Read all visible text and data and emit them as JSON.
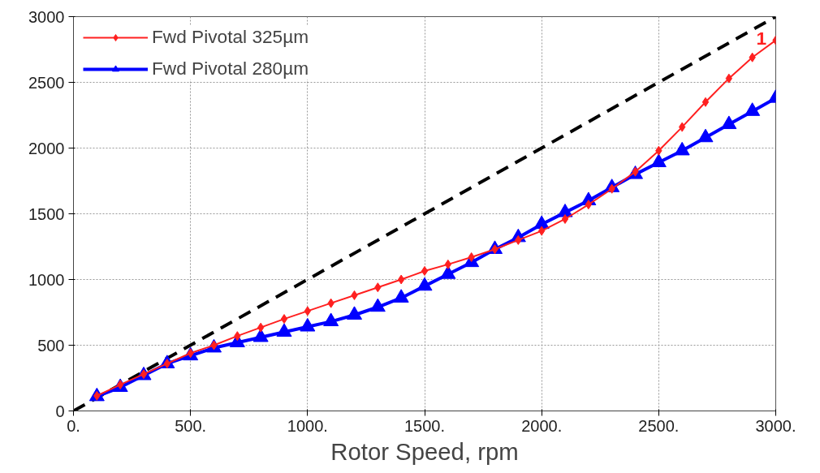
{
  "chart_data": {
    "type": "line",
    "xlabel": "Rotor Speed, rpm",
    "x": [
      100,
      200,
      300,
      400,
      500,
      600,
      700,
      800,
      900,
      1000,
      1100,
      1200,
      1300,
      1400,
      1500,
      1600,
      1700,
      1800,
      1900,
      2000,
      2100,
      2200,
      2300,
      2400,
      2500,
      2600,
      2700,
      2800,
      2900,
      3000
    ],
    "series": [
      {
        "name": "Fwd Pivotal 325µm",
        "color": "#ff2020",
        "marker": "diamond",
        "values": [
          115,
          200,
          280,
          360,
          440,
          500,
          570,
          635,
          700,
          760,
          820,
          880,
          940,
          1000,
          1065,
          1115,
          1170,
          1230,
          1300,
          1370,
          1460,
          1570,
          1690,
          1820,
          1980,
          2160,
          2350,
          2530,
          2690,
          2820
        ]
      },
      {
        "name": "Fwd Pivotal 280µm",
        "color": "#0000ff",
        "marker": "triangle",
        "values": [
          110,
          180,
          270,
          360,
          420,
          480,
          520,
          560,
          600,
          640,
          680,
          730,
          790,
          860,
          950,
          1040,
          1130,
          1230,
          1320,
          1420,
          1510,
          1600,
          1700,
          1800,
          1890,
          1980,
          2080,
          2180,
          2280,
          2380
        ]
      },
      {
        "type": "line",
        "color": "#000000",
        "marker": "none",
        "line_style": "dashed",
        "x": [
          0,
          3000
        ],
        "values": [
          0,
          3000
        ]
      }
    ],
    "xlim": [
      0,
      3000
    ],
    "ylim": [
      0,
      3000
    ],
    "xticks": [
      {
        "value": 0,
        "label": "0."
      },
      {
        "value": 500,
        "label": "500."
      },
      {
        "value": 1000,
        "label": "1000."
      },
      {
        "value": 1500,
        "label": "1500."
      },
      {
        "value": 2000,
        "label": "2000."
      },
      {
        "value": 2500,
        "label": "2500."
      },
      {
        "value": 3000,
        "label": "3000."
      }
    ],
    "yticks": [
      0,
      500,
      1000,
      1500,
      2000,
      2500,
      3000
    ],
    "annotations": [
      {
        "text": "1",
        "x": 3000,
        "y": 3000
      }
    ],
    "grid": true,
    "legend": "top left",
    "line_style": "solid"
  }
}
